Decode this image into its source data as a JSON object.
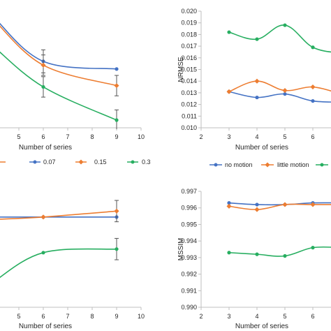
{
  "chart_data": [
    {
      "type": "line",
      "panel": "top-left",
      "xlabel": "Number of series",
      "ylabel": "",
      "xticks": [
        5,
        6,
        7,
        8,
        9,
        10
      ],
      "xlim": [
        4,
        10
      ],
      "ylim": [
        0,
        10
      ],
      "yticks": [],
      "series": [
        {
          "name": "0.07",
          "color": "#4472c4",
          "x": [
            4,
            6,
            9
          ],
          "y": [
            8.6,
            5.2,
            4.6
          ],
          "err": [
            null,
            0.9,
            null
          ]
        },
        {
          "name": "0.15",
          "color": "#ed7d31",
          "x": [
            4,
            6,
            9
          ],
          "y": [
            8.4,
            4.9,
            3.3
          ],
          "err": [
            null,
            0.8,
            0.8
          ]
        },
        {
          "name": "0.3",
          "color": "#27ae60",
          "x": [
            4,
            6,
            9
          ],
          "y": [
            6.3,
            3.2,
            0.6
          ],
          "err": [
            null,
            0.8,
            0.8
          ]
        }
      ]
    },
    {
      "type": "line",
      "panel": "top-right",
      "xlabel": "Number of series",
      "ylabel": "NRMSE",
      "xticks": [
        2,
        3,
        4,
        5,
        6
      ],
      "yticks": [
        0.01,
        0.011,
        0.012,
        0.013,
        0.014,
        0.015,
        0.016,
        0.017,
        0.018,
        0.019,
        0.02
      ],
      "xlim": [
        2,
        7
      ],
      "ylim": [
        0.01,
        0.02
      ],
      "series": [
        {
          "name": "no motion",
          "color": "#4472c4",
          "x": [
            3,
            4,
            5,
            6,
            7
          ],
          "y": [
            0.0131,
            0.0126,
            0.0129,
            0.0123,
            0.0122
          ]
        },
        {
          "name": "little motion",
          "color": "#ed7d31",
          "x": [
            3,
            4,
            5,
            6,
            7
          ],
          "y": [
            0.0131,
            0.014,
            0.0132,
            0.0135,
            0.0129
          ]
        },
        {
          "name": "",
          "color": "#27ae60",
          "x": [
            3,
            4,
            5,
            6,
            7
          ],
          "y": [
            0.0182,
            0.0176,
            0.0188,
            0.0169,
            0.0164
          ]
        }
      ]
    },
    {
      "type": "line",
      "panel": "bottom-left",
      "xlabel": "Number of series",
      "ylabel": "",
      "xticks": [
        5,
        6,
        7,
        8,
        9,
        10
      ],
      "xlim": [
        4,
        10
      ],
      "ylim": [
        0,
        10
      ],
      "yticks": [],
      "series": [
        {
          "name": "0.07",
          "color": "#4472c4",
          "x": [
            4,
            6,
            9
          ],
          "y": [
            7.6,
            7.6,
            7.6
          ],
          "err": [
            null,
            null,
            null
          ]
        },
        {
          "name": "0.15",
          "color": "#ed7d31",
          "x": [
            4,
            6,
            9
          ],
          "y": [
            7.4,
            7.6,
            8.1
          ],
          "err": [
            null,
            null,
            0.9
          ]
        },
        {
          "name": "0.3",
          "color": "#27ae60",
          "x": [
            4,
            6,
            9
          ],
          "y": [
            2.2,
            4.6,
            4.9
          ],
          "err": [
            null,
            null,
            0.9
          ]
        }
      ]
    },
    {
      "type": "line",
      "panel": "bottom-right",
      "xlabel": "Number of series",
      "ylabel": "MSSIM",
      "xticks": [
        2,
        3,
        4,
        5,
        6
      ],
      "yticks": [
        0.99,
        0.991,
        0.992,
        0.993,
        0.994,
        0.995,
        0.996,
        0.997
      ],
      "xlim": [
        2,
        7
      ],
      "ylim": [
        0.99,
        0.997
      ],
      "series": [
        {
          "name": "no motion",
          "color": "#4472c4",
          "x": [
            3,
            4,
            5,
            6,
            7
          ],
          "y": [
            0.9963,
            0.9962,
            0.9962,
            0.9963,
            0.9963
          ]
        },
        {
          "name": "little motion",
          "color": "#ed7d31",
          "x": [
            3,
            4,
            5,
            6,
            7
          ],
          "y": [
            0.9961,
            0.9959,
            0.9962,
            0.9962,
            0.9962
          ]
        },
        {
          "name": "",
          "color": "#27ae60",
          "x": [
            3,
            4,
            5,
            6,
            7
          ],
          "y": [
            0.9933,
            0.9932,
            0.9931,
            0.9936,
            0.9936
          ]
        }
      ]
    }
  ],
  "legends": {
    "left": [
      {
        "label": "0.07",
        "color": "#4472c4"
      },
      {
        "label": "0.15",
        "color": "#ed7d31"
      },
      {
        "label": "0.3",
        "color": "#27ae60"
      }
    ],
    "right": [
      {
        "label": "no motion",
        "color": "#4472c4"
      },
      {
        "label": "little motion",
        "color": "#ed7d31"
      },
      {
        "label": "",
        "color": "#27ae60"
      }
    ]
  },
  "left_legend_partial_swatch_color": "#ed7d31"
}
